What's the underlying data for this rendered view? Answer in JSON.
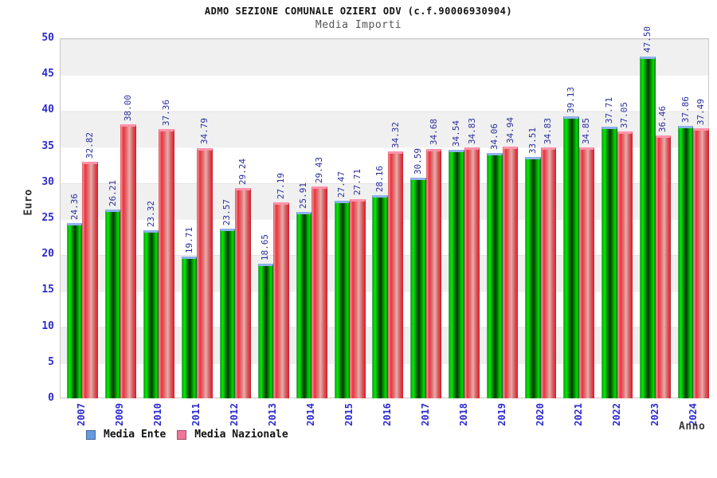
{
  "header": {
    "title": "ADMO SEZIONE COMUNALE OZIERI ODV (c.f.90006930904)",
    "subtitle": "Media Importi"
  },
  "chart_data": {
    "type": "bar",
    "title": "ADMO SEZIONE COMUNALE OZIERI ODV (c.f.90006930904)",
    "subtitle": "Media Importi",
    "xlabel": "Anno",
    "ylabel": "Euro",
    "ylim": [
      0,
      50
    ],
    "ytick_step": 5,
    "grid": "horizontal-bands",
    "legend_position": "bottom-left",
    "categories": [
      "2007",
      "2009",
      "2010",
      "2011",
      "2012",
      "2013",
      "2014",
      "2015",
      "2016",
      "2017",
      "2018",
      "2019",
      "2020",
      "2021",
      "2022",
      "2023",
      "2024"
    ],
    "series": [
      {
        "name": "Media Ente",
        "swatch_color": "#6699dd",
        "bar_color": "#00cc00",
        "cap_color": "#8fb3ee",
        "values": [
          24.36,
          26.21,
          23.32,
          19.71,
          23.57,
          18.65,
          25.91,
          27.47,
          28.16,
          30.59,
          34.54,
          34.06,
          33.51,
          39.13,
          37.71,
          47.5,
          37.86
        ]
      },
      {
        "name": "Media Nazionale",
        "swatch_color": "#ee7799",
        "bar_color": "#ee2233",
        "cap_color": "#ff93ab",
        "values": [
          32.82,
          38.0,
          37.36,
          34.79,
          29.24,
          27.19,
          29.43,
          27.71,
          34.32,
          34.68,
          34.83,
          34.94,
          34.83,
          34.85,
          37.05,
          36.46,
          37.49
        ]
      }
    ],
    "value_label_color": "#2a2f9e",
    "tick_label_color": "#2b2bd0"
  },
  "legend": {
    "items": [
      {
        "label": "Media Ente"
      },
      {
        "label": "Media Nazionale"
      }
    ]
  }
}
